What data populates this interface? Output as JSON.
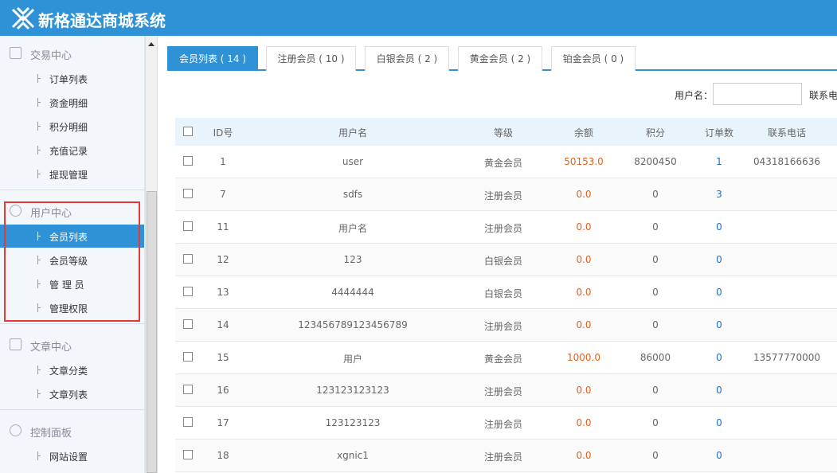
{
  "header": {
    "title": "新格通达商城系统"
  },
  "sidebar": {
    "groups": [
      {
        "title": "交易中心",
        "items": [
          "订单列表",
          "资金明细",
          "积分明细",
          "充值记录",
          "提现管理"
        ]
      },
      {
        "title": "用户中心",
        "items": [
          "会员列表",
          "会员等级",
          "管 理 员",
          "管理权限"
        ]
      },
      {
        "title": "文章中心",
        "items": [
          "文章分类",
          "文章列表"
        ]
      },
      {
        "title": "控制面板",
        "items": [
          "网站设置"
        ]
      }
    ]
  },
  "tabs": [
    "会员列表 ( 14 )",
    "注册会员 ( 10 )",
    "白银会员 ( 2 )",
    "黄金会员 ( 2 )",
    "铂金会员 ( 0 )"
  ],
  "search": {
    "label": "用户名：",
    "label2": "联系电"
  },
  "table": {
    "columns": [
      "ID号",
      "用户名",
      "等级",
      "余额",
      "积分",
      "订单数",
      "联系电话"
    ],
    "rows": [
      [
        "1",
        "user",
        "黄金会员",
        "50153.0",
        "8200450",
        "1",
        "04318166636"
      ],
      [
        "7",
        "sdfs",
        "注册会员",
        "0.0",
        "0",
        "3"
      ],
      [
        "11",
        "用户名",
        "注册会员",
        "0.0",
        "0",
        "0"
      ],
      [
        "12",
        "123",
        "白银会员",
        "0.0",
        "0",
        "0"
      ],
      [
        "13",
        "4444444",
        "白银会员",
        "0.0",
        "0",
        "0"
      ],
      [
        "14",
        "123456789123456789",
        "注册会员",
        "0.0",
        "0",
        "0"
      ],
      [
        "15",
        "用户",
        "黄金会员",
        "1000.0",
        "86000",
        "0",
        "13577770000"
      ],
      [
        "16",
        "123123123123",
        "注册会员",
        "0.0",
        "0",
        "0"
      ],
      [
        "17",
        "123123123",
        "注册会员",
        "0.0",
        "0",
        "0"
      ],
      [
        "18",
        "xgnic1",
        "注册会员",
        "0.0",
        "0",
        "0"
      ]
    ]
  }
}
